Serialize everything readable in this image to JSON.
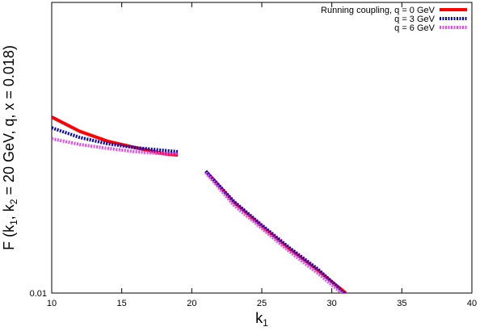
{
  "chart_data": {
    "type": "line",
    "x_label": [
      "k",
      "1"
    ],
    "y_label": [
      "F (k",
      "1",
      ", k",
      "2",
      " = 20 GeV, q, x = 0.018)"
    ],
    "x": [
      10,
      12,
      14,
      16,
      18,
      19,
      20,
      21,
      23,
      25,
      27,
      29,
      31
    ],
    "series": [
      {
        "name": "Running coupling, q = 0 GeV",
        "color": "#ff0000",
        "style": "solid",
        "values": [
          0.0296,
          0.0271,
          0.0255,
          0.0245,
          0.0236,
          0.0234,
          null,
          0.0212,
          0.0175,
          0.0151,
          0.0131,
          0.0115,
          0.01
        ]
      },
      {
        "name": "q = 3 GeV",
        "color": "#0000cc",
        "style": "dotted",
        "values": [
          0.0277,
          0.0261,
          0.0251,
          0.0245,
          0.0241,
          0.0239,
          null,
          0.0212,
          0.0176,
          0.0152,
          0.0132,
          0.0116,
          0.0099
        ]
      },
      {
        "name": "q = 6 GeV",
        "color": "#ee44ee",
        "style": "dotted",
        "values": [
          0.0259,
          0.025,
          0.0244,
          0.0239,
          0.0236,
          0.0236,
          null,
          0.021,
          0.0172,
          0.0149,
          0.0129,
          0.0113,
          0.0098
        ]
      }
    ],
    "xlim": [
      10,
      40
    ],
    "xticks": [
      10,
      15,
      20,
      25,
      30,
      35,
      40
    ],
    "ylim": [
      0.01,
      0.06
    ],
    "yticks": [
      0.01
    ],
    "log_y": true,
    "legend": "top-right"
  }
}
